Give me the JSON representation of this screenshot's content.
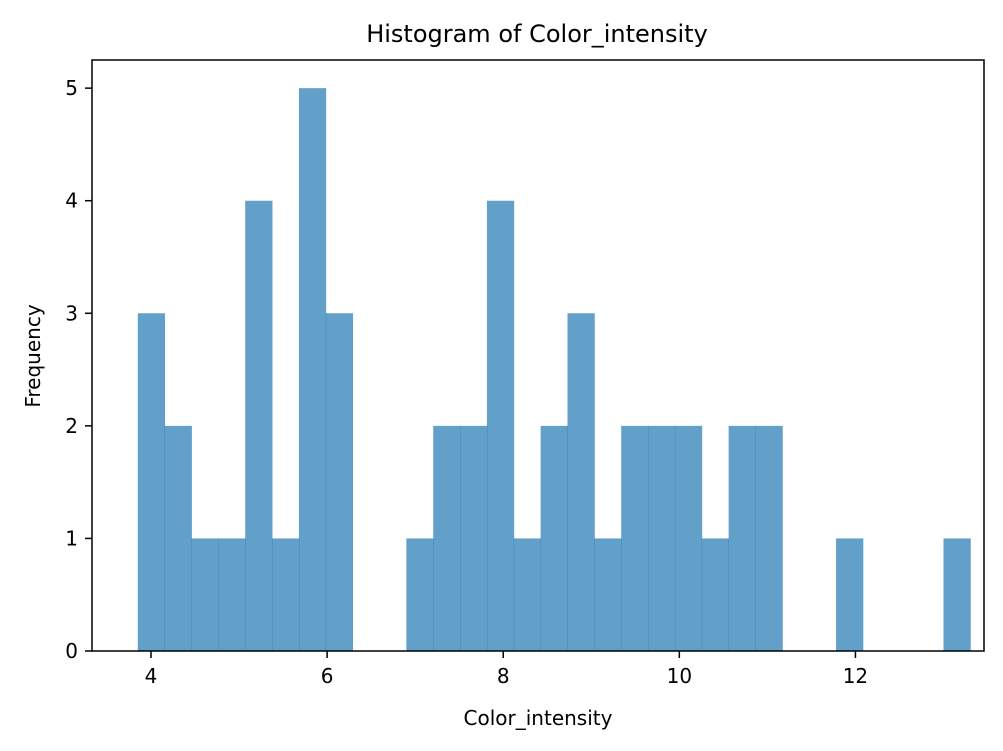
{
  "chart_data": {
    "type": "bar",
    "title": "Histogram of Color_intensity",
    "xlabel": "Color_intensity",
    "ylabel": "Frequency",
    "xlim": [
      3.33,
      13.46
    ],
    "ylim": [
      0,
      5.25
    ],
    "x_ticks": [
      4,
      6,
      8,
      10,
      12
    ],
    "y_ticks": [
      0,
      1,
      2,
      3,
      4,
      5
    ],
    "bin_start": 3.85,
    "bin_width": 0.305,
    "values": [
      3,
      2,
      1,
      1,
      4,
      1,
      5,
      3,
      0,
      0,
      1,
      2,
      2,
      4,
      1,
      2,
      3,
      1,
      2,
      2,
      2,
      1,
      2,
      2,
      0,
      0,
      1,
      0,
      0,
      0,
      1
    ],
    "bar_color": "#1f77b4",
    "bar_opacity": 0.7,
    "grid": false,
    "legend": "none"
  }
}
